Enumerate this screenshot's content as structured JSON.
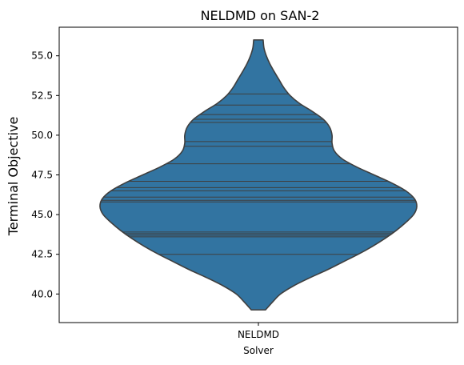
{
  "chart_data": {
    "type": "violin",
    "title": "NELDMD on SAN-2",
    "xlabel": "Solver",
    "ylabel": "Terminal Objective",
    "categories": [
      "NELDMD"
    ],
    "ylim": [
      38.2,
      56.8
    ],
    "yticks": [
      40.0,
      42.5,
      45.0,
      47.5,
      50.0,
      52.5,
      55.0
    ],
    "ytick_labels": [
      "40.0",
      "42.5",
      "45.0",
      "47.5",
      "50.0",
      "52.5",
      "55.0"
    ],
    "grid": false,
    "series": [
      {
        "category": "NELDMD",
        "color": "#3274a1",
        "edge_color": "#3f3f3f",
        "values": [
          42.5,
          43.6,
          43.7,
          43.8,
          43.9,
          45.8,
          45.9,
          46.1,
          46.5,
          46.7,
          47.1,
          48.2,
          49.3,
          49.6,
          50.8,
          51.0,
          51.3,
          51.9,
          52.6
        ],
        "density_profile": [
          {
            "y": 39.0,
            "w": 0.045
          },
          {
            "y": 39.5,
            "w": 0.09
          },
          {
            "y": 40.0,
            "w": 0.14
          },
          {
            "y": 40.5,
            "w": 0.22
          },
          {
            "y": 41.0,
            "w": 0.32
          },
          {
            "y": 41.5,
            "w": 0.43
          },
          {
            "y": 42.0,
            "w": 0.53
          },
          {
            "y": 42.5,
            "w": 0.63
          },
          {
            "y": 43.0,
            "w": 0.72
          },
          {
            "y": 43.5,
            "w": 0.8
          },
          {
            "y": 44.0,
            "w": 0.87
          },
          {
            "y": 44.5,
            "w": 0.93
          },
          {
            "y": 45.0,
            "w": 0.98
          },
          {
            "y": 45.5,
            "w": 1.0
          },
          {
            "y": 46.0,
            "w": 0.985
          },
          {
            "y": 46.5,
            "w": 0.93
          },
          {
            "y": 47.0,
            "w": 0.84
          },
          {
            "y": 47.5,
            "w": 0.73
          },
          {
            "y": 48.0,
            "w": 0.62
          },
          {
            "y": 48.5,
            "w": 0.53
          },
          {
            "y": 49.0,
            "w": 0.48
          },
          {
            "y": 49.5,
            "w": 0.465
          },
          {
            "y": 50.0,
            "w": 0.465
          },
          {
            "y": 50.5,
            "w": 0.45
          },
          {
            "y": 51.0,
            "w": 0.41
          },
          {
            "y": 51.5,
            "w": 0.34
          },
          {
            "y": 52.0,
            "w": 0.26
          },
          {
            "y": 52.5,
            "w": 0.2
          },
          {
            "y": 53.0,
            "w": 0.16
          },
          {
            "y": 53.5,
            "w": 0.13
          },
          {
            "y": 54.0,
            "w": 0.1
          },
          {
            "y": 54.5,
            "w": 0.072
          },
          {
            "y": 55.0,
            "w": 0.05
          },
          {
            "y": 55.5,
            "w": 0.035
          },
          {
            "y": 56.0,
            "w": 0.03
          }
        ],
        "inner": "stick"
      }
    ]
  }
}
